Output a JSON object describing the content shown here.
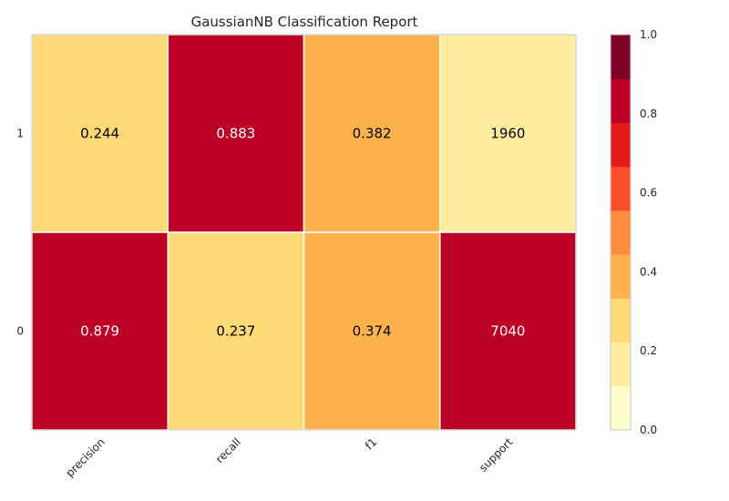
{
  "chart_data": {
    "type": "heatmap",
    "title": "GaussianNB Classification Report",
    "xlabel": "",
    "ylabel": "",
    "x_categories": [
      "precision",
      "recall",
      "f1",
      "support"
    ],
    "y_categories": [
      "1",
      "0"
    ],
    "cells": [
      [
        0.244,
        0.883,
        0.382,
        1960
      ],
      [
        0.879,
        0.237,
        0.374,
        7040
      ]
    ],
    "cell_labels": [
      [
        "0.244",
        "0.883",
        "0.382",
        "1960"
      ],
      [
        "0.879",
        "0.237",
        "0.374",
        "7040"
      ]
    ],
    "cell_colors": [
      [
        "#fed976",
        "#bd0026",
        "#feb24c",
        "#ffeda0"
      ],
      [
        "#bd0026",
        "#fed976",
        "#feb24c",
        "#bd0026"
      ]
    ],
    "cell_text_colors": [
      [
        "#000000",
        "#ffffff",
        "#000000",
        "#000000"
      ],
      [
        "#ffffff",
        "#000000",
        "#000000",
        "#ffffff"
      ]
    ],
    "colorbar": {
      "range": [
        0,
        1
      ],
      "tick_labels": [
        "0.0",
        "0.2",
        "0.4",
        "0.6",
        "0.8",
        "1.0"
      ],
      "ticks": [
        0.0,
        0.2,
        0.4,
        0.6,
        0.8,
        1.0
      ],
      "colors": [
        "#ffffcc",
        "#ffeda0",
        "#fed976",
        "#feb24c",
        "#fd8d3c",
        "#fc4e2a",
        "#e31a1c",
        "#bd0026",
        "#800026"
      ]
    },
    "grid": false,
    "legend": "colorbar-right"
  }
}
